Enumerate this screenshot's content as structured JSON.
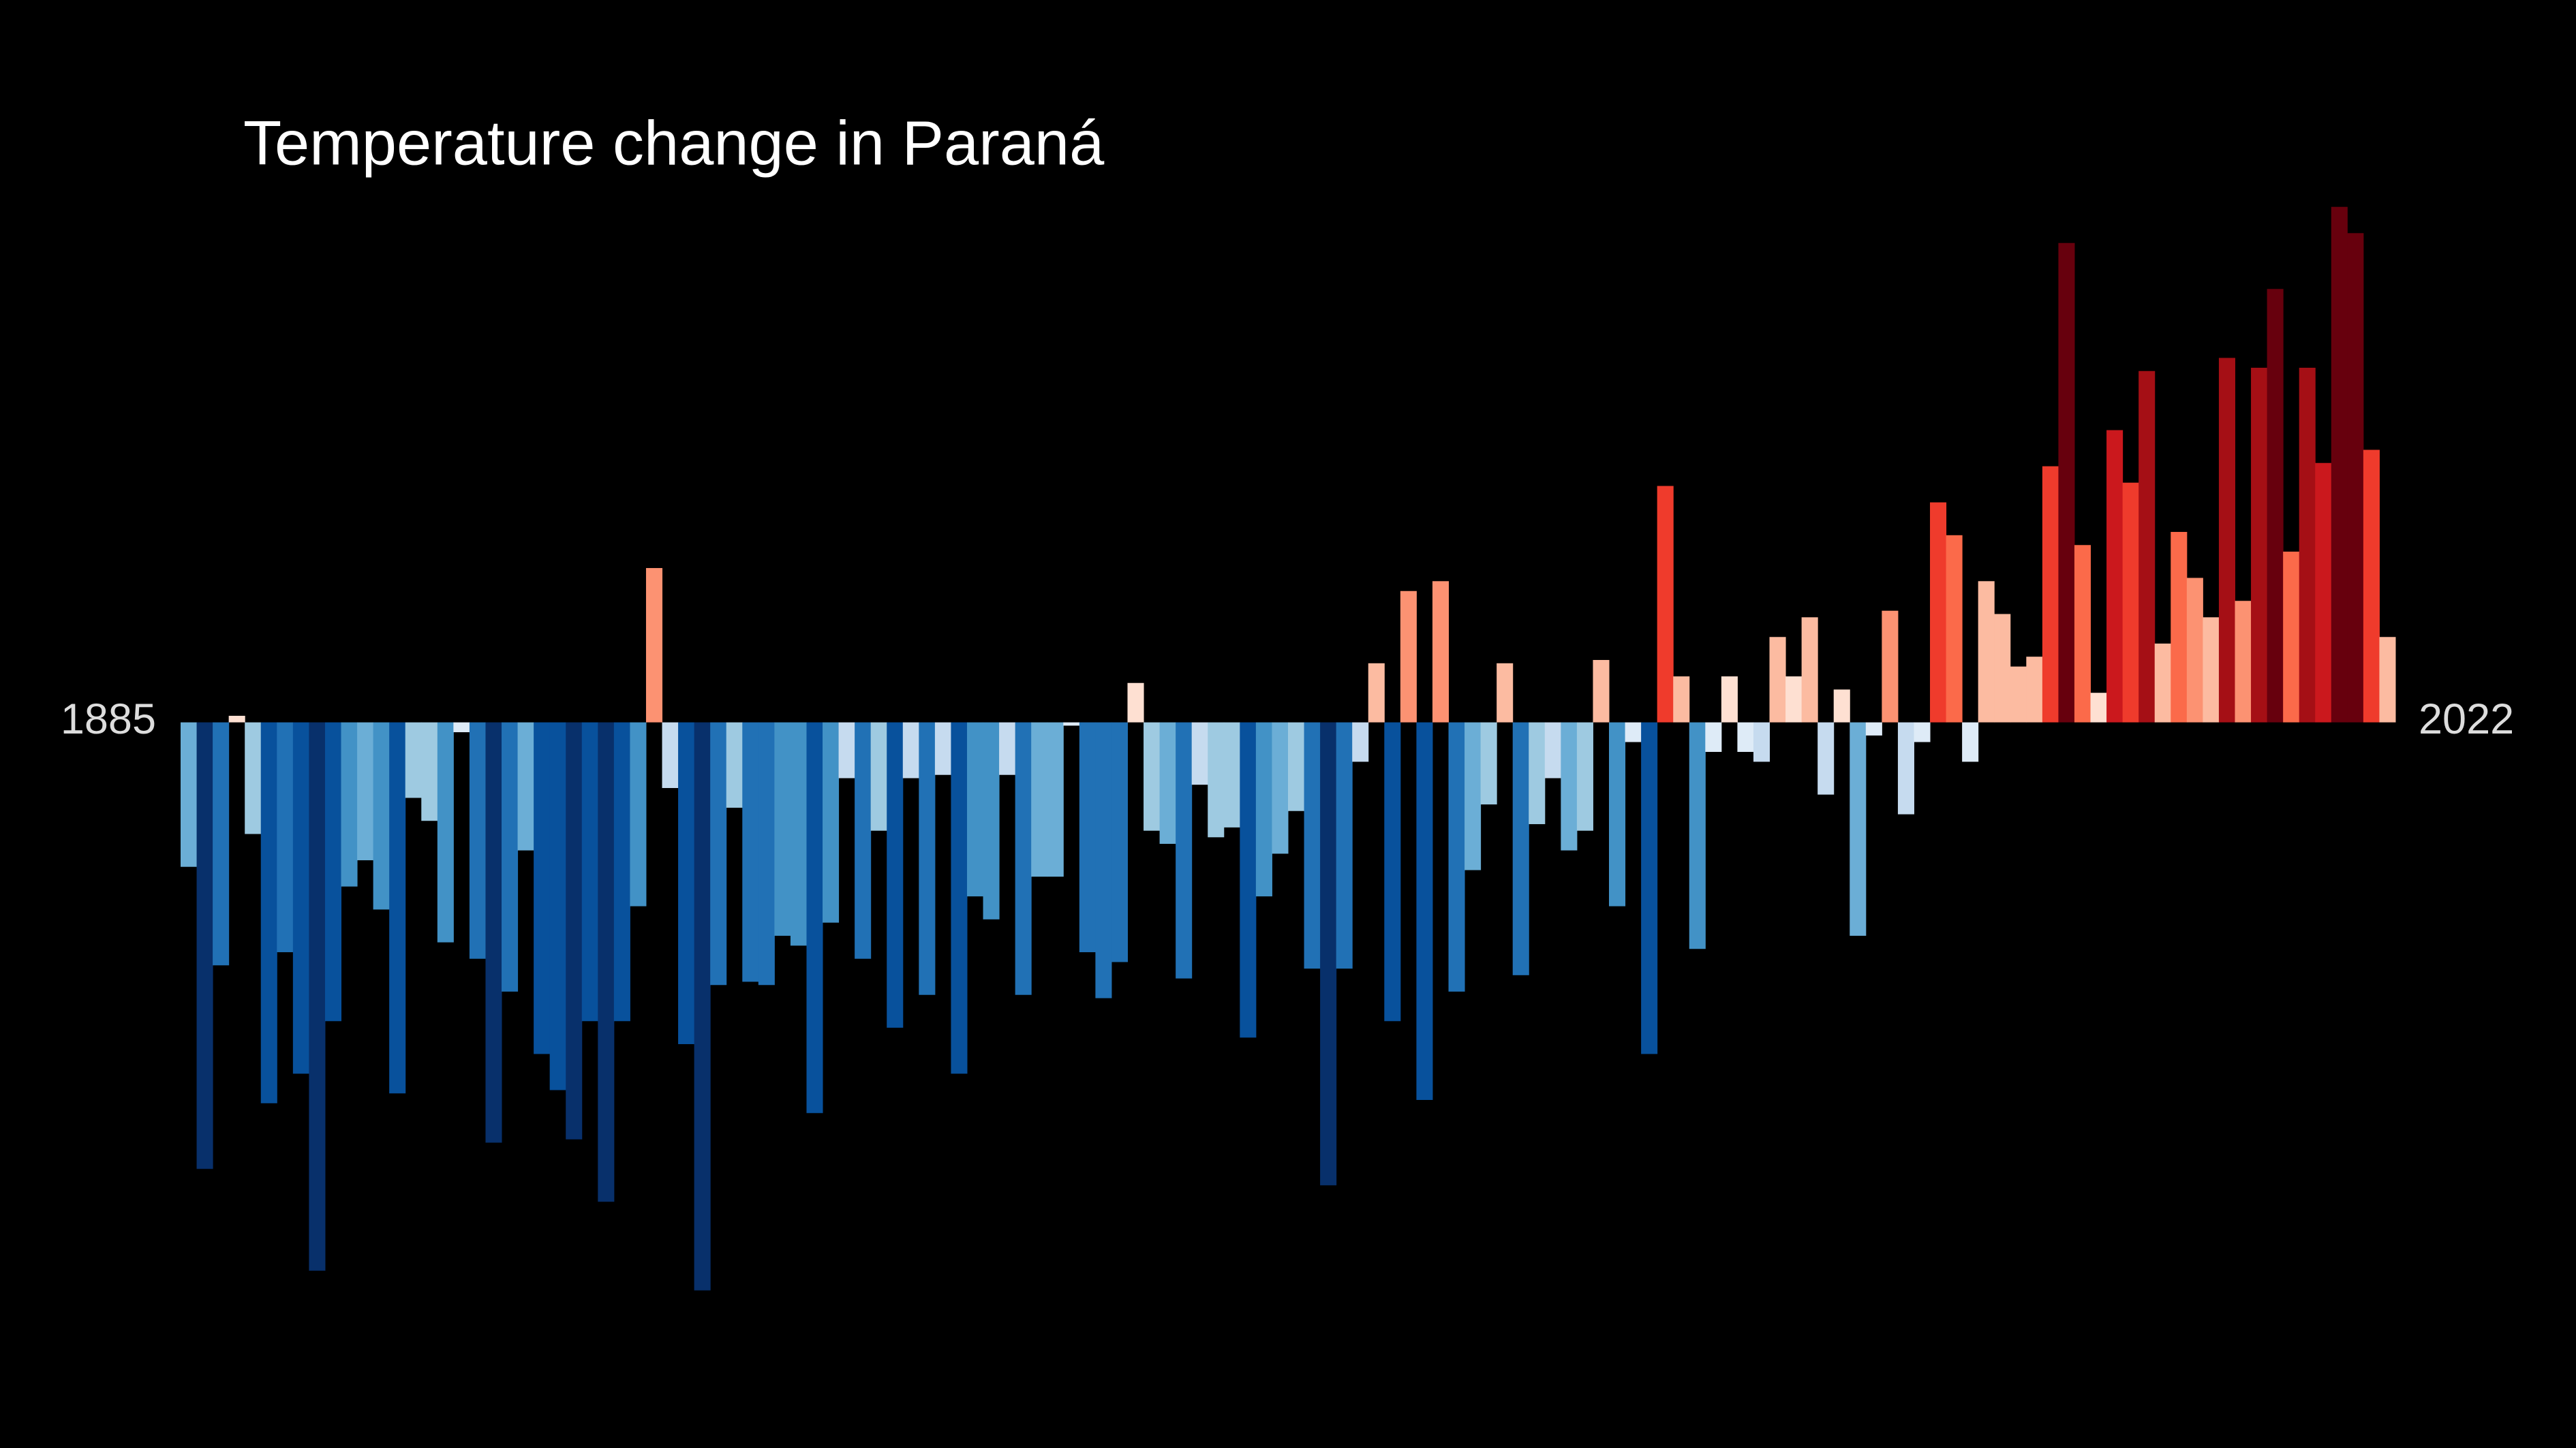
{
  "chart_data": {
    "type": "bar",
    "title": "Temperature change in Paraná",
    "categories": [
      "1885",
      null,
      null,
      null,
      null,
      null,
      null,
      null,
      null,
      null,
      null,
      null,
      null,
      null,
      null,
      null,
      null,
      null,
      null,
      null,
      null,
      null,
      null,
      null,
      null,
      null,
      null,
      null,
      null,
      null,
      null,
      null,
      null,
      null,
      null,
      null,
      null,
      null,
      null,
      null,
      null,
      null,
      null,
      null,
      null,
      null,
      null,
      null,
      null,
      null,
      null,
      null,
      null,
      null,
      null,
      null,
      null,
      null,
      null,
      null,
      null,
      null,
      null,
      null,
      null,
      null,
      null,
      null,
      null,
      null,
      null,
      null,
      null,
      null,
      null,
      null,
      null,
      null,
      null,
      null,
      null,
      null,
      null,
      null,
      null,
      null,
      null,
      null,
      null,
      null,
      null,
      null,
      null,
      null,
      null,
      null,
      null,
      null,
      null,
      null,
      null,
      null,
      null,
      null,
      null,
      null,
      null,
      null,
      null,
      null,
      null,
      null,
      null,
      null,
      null,
      null,
      null,
      null,
      null,
      null,
      null,
      null,
      null,
      null,
      null,
      null,
      null,
      null,
      null,
      null,
      null,
      null,
      null,
      null,
      null,
      null,
      null,
      "2022"
    ],
    "values": [
      -0.44,
      -1.36,
      -0.74,
      0.02,
      -0.34,
      -1.16,
      -0.7,
      -1.07,
      -1.67,
      -0.91,
      -0.5,
      -0.42,
      -0.57,
      -1.13,
      -0.23,
      -0.3,
      -0.67,
      -0.03,
      -0.72,
      -1.28,
      -0.82,
      -0.39,
      -1.01,
      -1.12,
      -1.27,
      -0.91,
      -1.46,
      -0.91,
      -0.56,
      0.47,
      -0.2,
      -0.98,
      -1.73,
      -0.8,
      -0.26,
      -0.79,
      -0.8,
      -0.65,
      -0.68,
      -1.19,
      -0.61,
      -0.17,
      -0.72,
      -0.33,
      -0.93,
      -0.17,
      -0.83,
      -0.16,
      -1.07,
      -0.53,
      -0.6,
      -0.16,
      -0.83,
      -0.47,
      -0.47,
      -0.01,
      -0.7,
      -0.84,
      -0.73,
      0.12,
      -0.33,
      -0.37,
      -0.78,
      -0.19,
      -0.35,
      -0.32,
      -0.96,
      -0.53,
      -0.4,
      -0.27,
      -0.75,
      -1.41,
      -0.75,
      -0.12,
      0.18,
      -0.91,
      0.4,
      -1.15,
      0.43,
      -0.82,
      -0.45,
      -0.25,
      0.18,
      -0.77,
      -0.31,
      -0.17,
      -0.39,
      -0.33,
      0.19,
      -0.56,
      -0.06,
      -1.01,
      0.72,
      0.14,
      -0.69,
      -0.09,
      0.14,
      -0.09,
      -0.12,
      0.26,
      0.14,
      0.32,
      -0.22,
      0.1,
      -0.65,
      -0.04,
      0.34,
      -0.28,
      -0.06,
      0.67,
      0.57,
      -0.12,
      0.43,
      0.33,
      0.17,
      0.2,
      0.78,
      1.46,
      0.54,
      0.09,
      0.89,
      0.73,
      1.07,
      0.24,
      0.58,
      0.44,
      0.32,
      1.11,
      0.37,
      1.08,
      1.32,
      0.52,
      1.08,
      0.79,
      1.57,
      1.49,
      0.83,
      0.26
    ],
    "colors": [
      "#6baed6",
      "#08306b",
      "#2171b5",
      "#fee0d2",
      "#9ecae1",
      "#08519c",
      "#2171b5",
      "#08519c",
      "#08306b",
      "#08519c",
      "#4292c6",
      "#6baed6",
      "#4292c6",
      "#08519c",
      "#9ecae1",
      "#9ecae1",
      "#4292c6",
      "#deebf7",
      "#2171b5",
      "#08306b",
      "#2171b5",
      "#6baed6",
      "#08519c",
      "#08519c",
      "#08306b",
      "#08519c",
      "#08306b",
      "#08519c",
      "#4292c6",
      "#fc9272",
      "#c6dbef",
      "#08519c",
      "#08306b",
      "#2171b5",
      "#9ecae1",
      "#2171b5",
      "#2171b5",
      "#4292c6",
      "#4292c6",
      "#08519c",
      "#4292c6",
      "#c6dbef",
      "#2171b5",
      "#9ecae1",
      "#08519c",
      "#c6dbef",
      "#2171b5",
      "#c6dbef",
      "#08519c",
      "#4292c6",
      "#4292c6",
      "#c6dbef",
      "#2171b5",
      "#6baed6",
      "#6baed6",
      "#deebf7",
      "#2171b5",
      "#2171b5",
      "#2171b5",
      "#fee0d2",
      "#9ecae1",
      "#6baed6",
      "#2171b5",
      "#c6dbef",
      "#9ecae1",
      "#9ecae1",
      "#08519c",
      "#4292c6",
      "#6baed6",
      "#9ecae1",
      "#2171b5",
      "#08306b",
      "#2171b5",
      "#c6dbef",
      "#fcbba1",
      "#08519c",
      "#fc9272",
      "#08519c",
      "#fc9272",
      "#2171b5",
      "#6baed6",
      "#9ecae1",
      "#fcbba1",
      "#2171b5",
      "#9ecae1",
      "#c6dbef",
      "#6baed6",
      "#9ecae1",
      "#fcbba1",
      "#4292c6",
      "#deebf7",
      "#08519c",
      "#ef3b2c",
      "#fcbba1",
      "#4292c6",
      "#deebf7",
      "#fee0d2",
      "#deebf7",
      "#c6dbef",
      "#fcbba1",
      "#fee0d2",
      "#fcbba1",
      "#c6dbef",
      "#fee0d2",
      "#6baed6",
      "#deebf7",
      "#fc9272",
      "#c6dbef",
      "#deebf7",
      "#ef3b2c",
      "#fb6a4a",
      "#deebf7",
      "#fcbba1",
      "#fcbba1",
      "#fcbba1",
      "#fcbba1",
      "#ef3b2c",
      "#67000d",
      "#fb6a4a",
      "#fee0d2",
      "#cb181d",
      "#ef3b2c",
      "#a50f15",
      "#fcbba1",
      "#fb6a4a",
      "#fc9272",
      "#fcbba1",
      "#a50f15",
      "#fc9272",
      "#a50f15",
      "#67000d",
      "#fb6a4a",
      "#a50f15",
      "#cb181d",
      "#67000d",
      "#67000d",
      "#ef3b2c",
      "#fcbba1"
    ],
    "ylim": [
      -2.21,
      2.2
    ]
  }
}
